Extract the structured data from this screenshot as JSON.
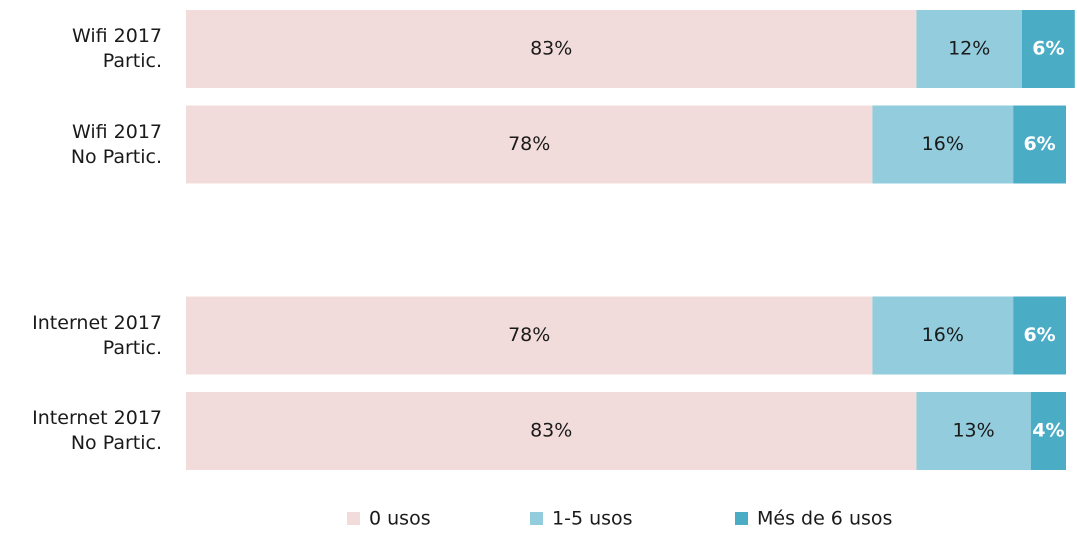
{
  "chart_data": {
    "type": "stacked-bar-horizontal",
    "categories": [
      "Wifi 2017\nPartic.",
      "Wifi 2017\nNo Partic.",
      null,
      "Internet 2017\nPartic.",
      "Internet 2017\nNo Partic."
    ],
    "xlim": [
      0,
      100
    ],
    "legend": "bottom",
    "series": [
      {
        "name": "0 usos",
        "color": "#f2dcdb",
        "label_color": "#1a1a1a",
        "values": [
          83,
          78,
          null,
          78,
          83
        ],
        "value_labels": [
          "83%",
          "78%",
          null,
          "78%",
          "83%"
        ]
      },
      {
        "name": "1-5 usos",
        "color": "#93cddd",
        "label_color": "#1a1a1a",
        "values": [
          12,
          16,
          null,
          16,
          13
        ],
        "value_labels": [
          "12%",
          "16%",
          null,
          "16%",
          "13%"
        ]
      },
      {
        "name": "Més de 6 usos",
        "color": "#4bacc6",
        "label_color": "#ffffff",
        "values": [
          6,
          6,
          null,
          6,
          4
        ],
        "value_labels": [
          "6%",
          "6%",
          null,
          "6%",
          "4%"
        ]
      }
    ]
  }
}
